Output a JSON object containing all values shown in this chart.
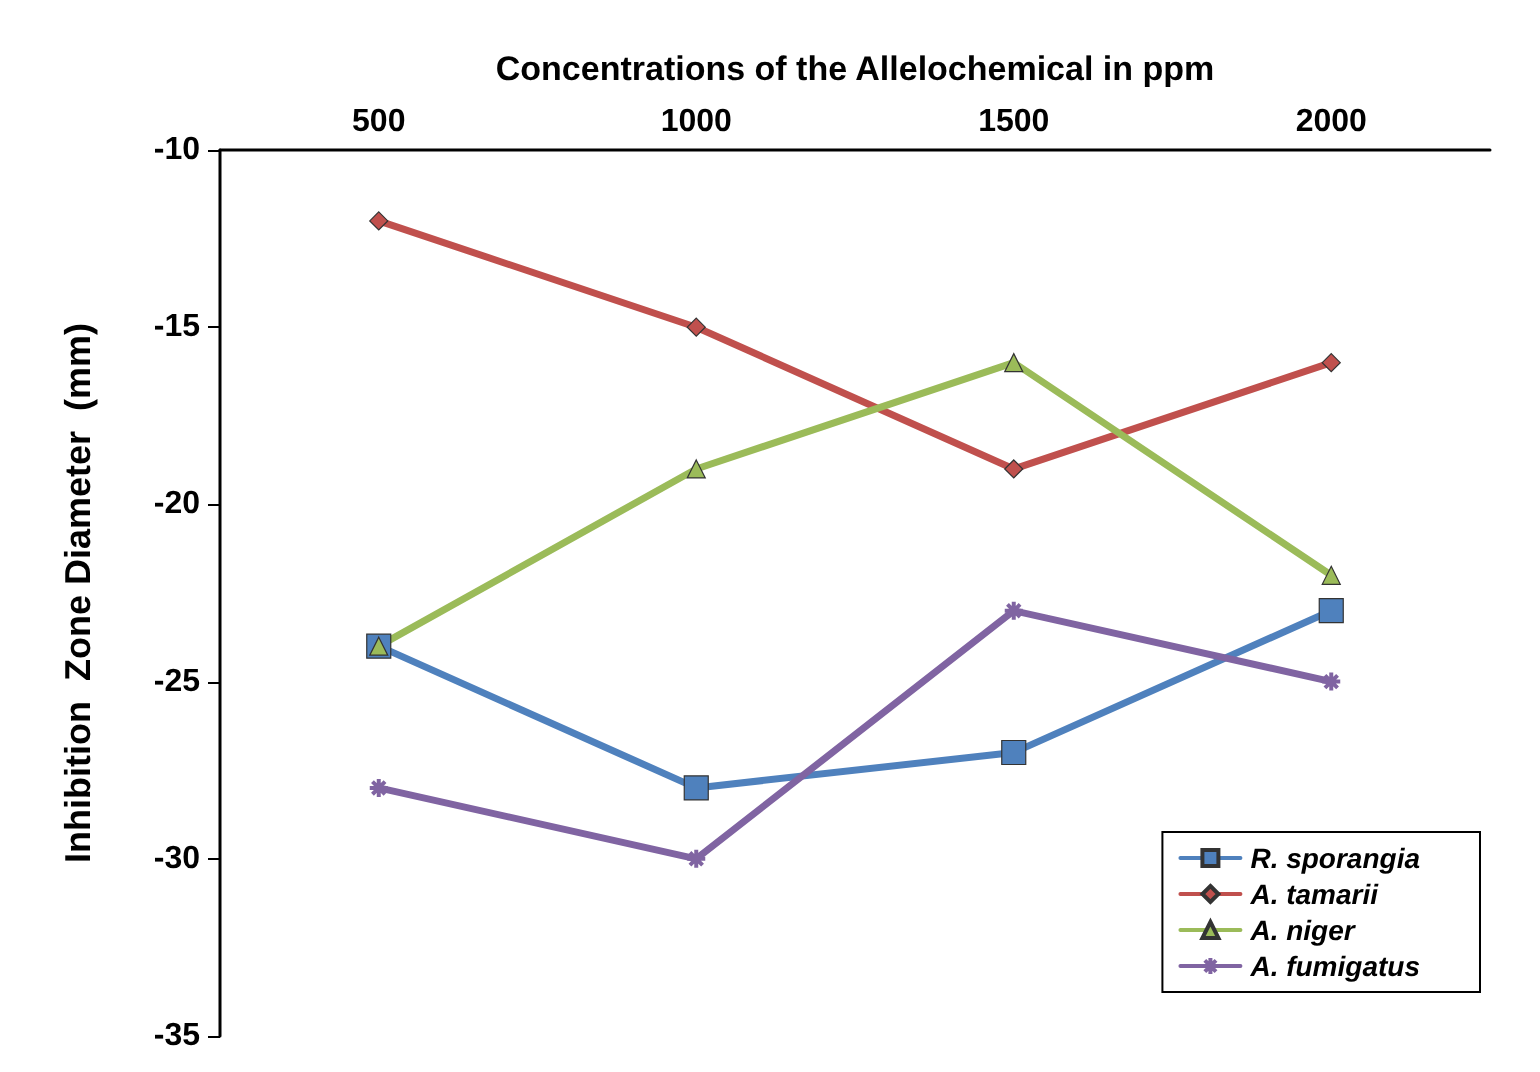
{
  "chart_data": {
    "type": "line",
    "xlabel": "Concentrations of the Allelochemical in ppm",
    "ylabel": "Inhibition  Zone Diameter  (mm)",
    "categories": [
      "500",
      "1000",
      "1500",
      "2000"
    ],
    "ylim": [
      -35,
      -10
    ],
    "yticks": [
      -35,
      -30,
      -25,
      -20,
      -15,
      -10
    ],
    "grid": false,
    "legend": "bottom right",
    "line_style": "solid",
    "series": [
      {
        "name": "R. sporangia",
        "color": "#4f81bd",
        "marker": "square",
        "values": [
          -24,
          -28,
          -27,
          -23
        ]
      },
      {
        "name": "A. tamarii",
        "color": "#c0504d",
        "marker": "diamond",
        "values": [
          -12,
          -15,
          -19,
          -16
        ]
      },
      {
        "name": "A. niger",
        "color": "#9bbb59",
        "marker": "triangle",
        "values": [
          -24,
          -19,
          -16,
          -22
        ]
      },
      {
        "name": "A. fumigatus",
        "color": "#8064a2",
        "marker": "cross",
        "values": [
          -28,
          -30,
          -23,
          -25
        ]
      }
    ]
  }
}
